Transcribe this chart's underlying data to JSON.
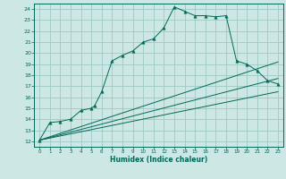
{
  "xlabel": "Humidex (Indice chaleur)",
  "bg_color": "#cde8e4",
  "grid_color": "#9cc8c4",
  "line_color": "#006858",
  "xlim": [
    -0.5,
    23.5
  ],
  "ylim": [
    11.5,
    24.5
  ],
  "xticks": [
    0,
    1,
    2,
    3,
    4,
    5,
    6,
    7,
    8,
    9,
    10,
    11,
    12,
    13,
    14,
    15,
    16,
    17,
    18,
    19,
    20,
    21,
    22,
    23
  ],
  "yticks": [
    12,
    13,
    14,
    15,
    16,
    17,
    18,
    19,
    20,
    21,
    22,
    23,
    24
  ],
  "main_x": [
    0,
    1,
    2,
    3,
    4,
    5,
    5.3,
    6,
    7,
    8,
    9,
    10,
    11,
    12,
    13,
    14,
    15,
    16,
    17,
    18,
    19,
    20,
    21,
    22,
    23
  ],
  "main_y": [
    12.1,
    13.7,
    13.8,
    14.0,
    14.8,
    15.0,
    15.2,
    16.5,
    19.3,
    19.8,
    20.2,
    21.0,
    21.3,
    22.3,
    24.2,
    23.8,
    23.4,
    23.4,
    23.3,
    23.4,
    19.3,
    19.0,
    18.4,
    17.5,
    17.2
  ],
  "line1_x": [
    0,
    23
  ],
  "line1_y": [
    12.1,
    19.2
  ],
  "line2_x": [
    0,
    23
  ],
  "line2_y": [
    12.1,
    17.7
  ],
  "line3_x": [
    0,
    23
  ],
  "line3_y": [
    12.1,
    16.5
  ],
  "markersize": 2.5
}
